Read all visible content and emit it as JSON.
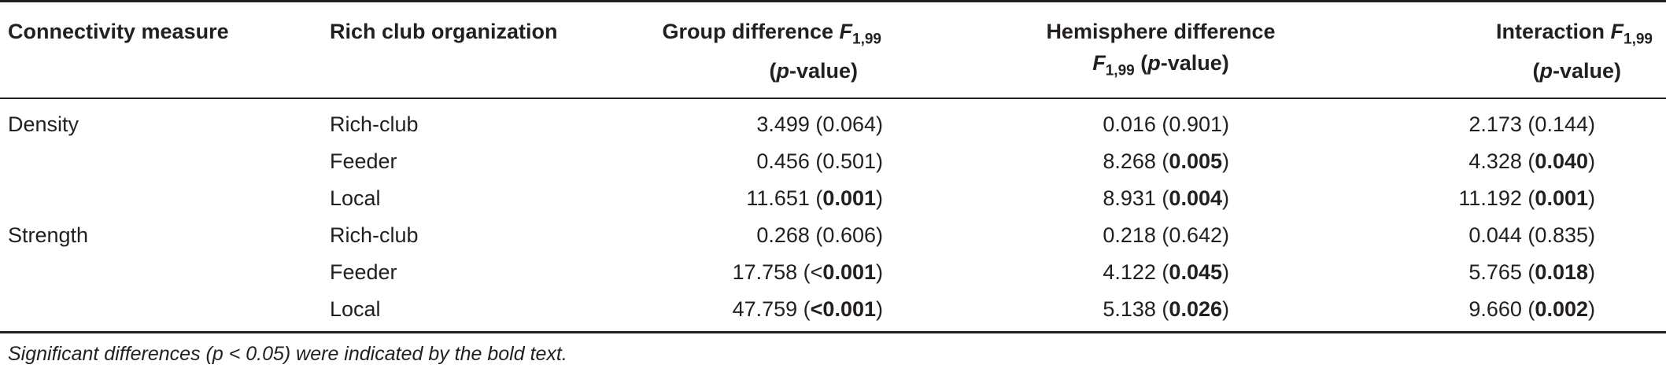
{
  "header": {
    "col1": "Connectivity measure",
    "col2": "Rich club organization",
    "col3_line1_prefix": "Group difference ",
    "col3_line1_sym": "F",
    "col3_line1_sub": "1,99",
    "col3_line2": "(p-value)",
    "col4_line1": "Hemisphere difference",
    "col4_line2_sym": "F",
    "col4_line2_sub": "1,99",
    "col4_line2_suffix": " (p-value)",
    "col5_line1_prefix": "Interaction ",
    "col5_line1_sym": "F",
    "col5_line1_sub": "1,99",
    "col5_line2": "(p-value)"
  },
  "rows": [
    {
      "measure": "Density",
      "org": "Rich-club",
      "g_val": "3.499 (",
      "g_p": "0.064",
      "g_bold": false,
      "h_val": "0.016 (",
      "h_p": "0.901",
      "h_bold": false,
      "i_val": "2.173 (",
      "i_p": "0.144",
      "i_bold": false
    },
    {
      "measure": "",
      "org": "Feeder",
      "g_val": "0.456 (",
      "g_p": "0.501",
      "g_bold": false,
      "h_val": "8.268 (",
      "h_p": "0.005",
      "h_bold": true,
      "i_val": "4.328 (",
      "i_p": "0.040",
      "i_bold": true
    },
    {
      "measure": "",
      "org": "Local",
      "g_val": "11.651 (",
      "g_p": "0.001",
      "g_bold": true,
      "h_val": "8.931 (",
      "h_p": "0.004",
      "h_bold": true,
      "i_val": "11.192 (",
      "i_p": "0.001",
      "i_bold": true
    },
    {
      "measure": "Strength",
      "org": "Rich-club",
      "g_val": "0.268 (",
      "g_p": "0.606",
      "g_bold": false,
      "h_val": "0.218 (",
      "h_p": "0.642",
      "h_bold": false,
      "i_val": "0.044 (",
      "i_p": "0.835",
      "i_bold": false
    },
    {
      "measure": "",
      "org": "Feeder",
      "g_val": "17.758 (<",
      "g_p": "0.001",
      "g_bold": true,
      "h_val": "4.122 (",
      "h_p": "0.045",
      "h_bold": true,
      "i_val": "5.765 (",
      "i_p": "0.018",
      "i_bold": true
    },
    {
      "measure": "",
      "org": "Local",
      "g_val": "47.759 (",
      "g_p": "<0.001",
      "g_bold": true,
      "h_val": "5.138 (",
      "h_p": "0.026",
      "h_bold": true,
      "i_val": "9.660 (",
      "i_p": "0.002",
      "i_bold": true
    }
  ],
  "close_paren": ")",
  "footnote": "Significant differences (p < 0.05) were indicated by the bold text."
}
